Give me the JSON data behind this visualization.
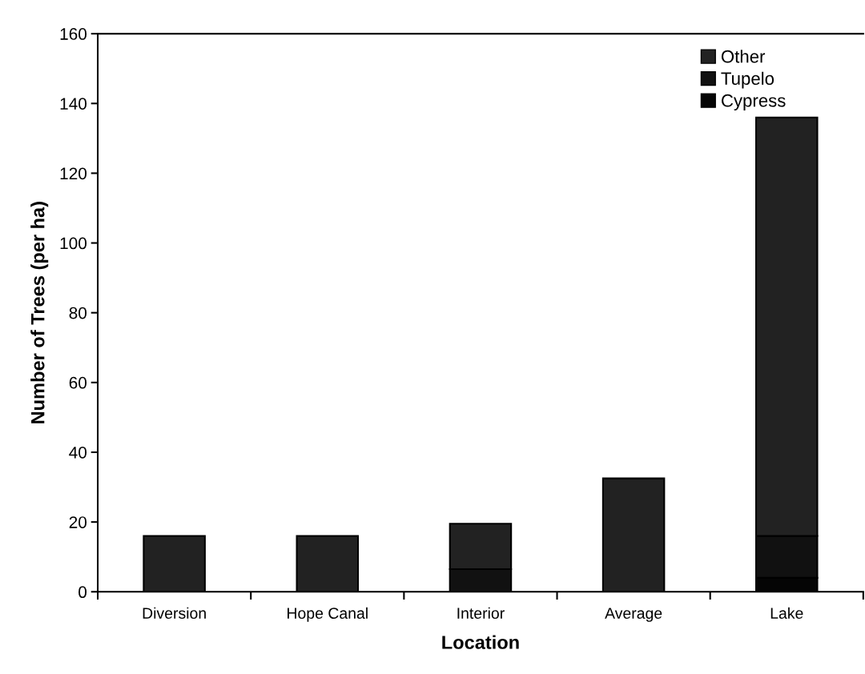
{
  "chart_data": {
    "type": "bar",
    "stacked": true,
    "xlabel": "Location",
    "ylabel": "Number of Trees (per ha)",
    "categories": [
      "Diversion",
      "Hope Canal",
      "Interior",
      "Average",
      "Lake"
    ],
    "series": [
      {
        "name": "Cypress",
        "color": "#050505",
        "values": [
          0,
          0,
          0,
          0,
          4
        ]
      },
      {
        "name": "Tupelo",
        "color": "#111111",
        "values": [
          0,
          0,
          6.5,
          0,
          12
        ]
      },
      {
        "name": "Other",
        "color": "#222222",
        "values": [
          16,
          16,
          13,
          32.5,
          120
        ]
      }
    ],
    "ylim": [
      0,
      160
    ],
    "yticks": [
      0,
      20,
      40,
      60,
      80,
      100,
      120,
      140,
      160
    ],
    "grid": false,
    "legend": "top right"
  }
}
